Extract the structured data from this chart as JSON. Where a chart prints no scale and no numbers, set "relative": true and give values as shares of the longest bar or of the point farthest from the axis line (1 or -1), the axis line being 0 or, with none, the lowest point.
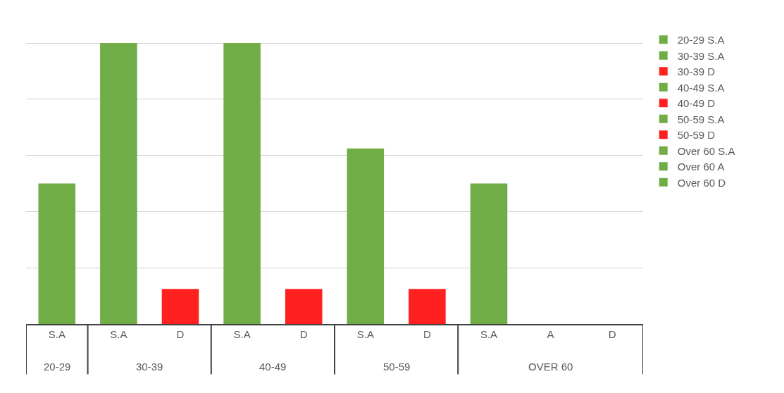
{
  "chart_data": {
    "type": "bar",
    "relative": true,
    "grid": "y",
    "legend": "right",
    "categories": [
      "S.A",
      "S.A",
      "D",
      "S.A",
      "D",
      "S.A",
      "D",
      "S.A",
      "A",
      "D"
    ],
    "annotations": [
      "20-29",
      "30-39",
      "40-49",
      "50-59",
      "OVER 60"
    ],
    "series": [
      {
        "name": "20-29 S.A",
        "color": "#70ad47",
        "values": [
          0.5,
          null,
          null,
          null,
          null,
          null,
          null,
          null,
          null,
          null
        ]
      },
      {
        "name": "30-39 S.A",
        "color": "#70ad47",
        "values": [
          null,
          1,
          null,
          null,
          null,
          null,
          null,
          null,
          null,
          null
        ]
      },
      {
        "name": "30-39 D",
        "color": "#ff2020",
        "values": [
          null,
          null,
          0.125,
          null,
          null,
          null,
          null,
          null,
          null,
          null
        ]
      },
      {
        "name": "40-49 S.A",
        "color": "#70ad47",
        "values": [
          null,
          null,
          null,
          1,
          null,
          null,
          null,
          null,
          null,
          null
        ]
      },
      {
        "name": "40-49 D",
        "color": "#ff2020",
        "values": [
          null,
          null,
          null,
          null,
          0.125,
          null,
          null,
          null,
          null,
          null
        ]
      },
      {
        "name": "50-59 S.A",
        "color": "#70ad47",
        "values": [
          null,
          null,
          null,
          null,
          null,
          0.625,
          null,
          null,
          null,
          null
        ]
      },
      {
        "name": "50-59 D",
        "color": "#ff2020",
        "values": [
          null,
          null,
          null,
          null,
          null,
          null,
          0.125,
          null,
          null,
          null
        ]
      },
      {
        "name": "Over 60 S.A",
        "color": "#70ad47",
        "values": [
          null,
          null,
          null,
          null,
          null,
          null,
          null,
          0.5,
          null,
          null
        ]
      },
      {
        "name": "Over 60 A",
        "color": "#70ad47",
        "values": [
          null,
          null,
          null,
          null,
          null,
          null,
          null,
          null,
          0,
          null
        ]
      },
      {
        "name": "Over 60 D",
        "color": "#70ad47",
        "values": [
          null,
          null,
          null,
          null,
          null,
          null,
          null,
          null,
          null,
          0
        ]
      }
    ]
  }
}
